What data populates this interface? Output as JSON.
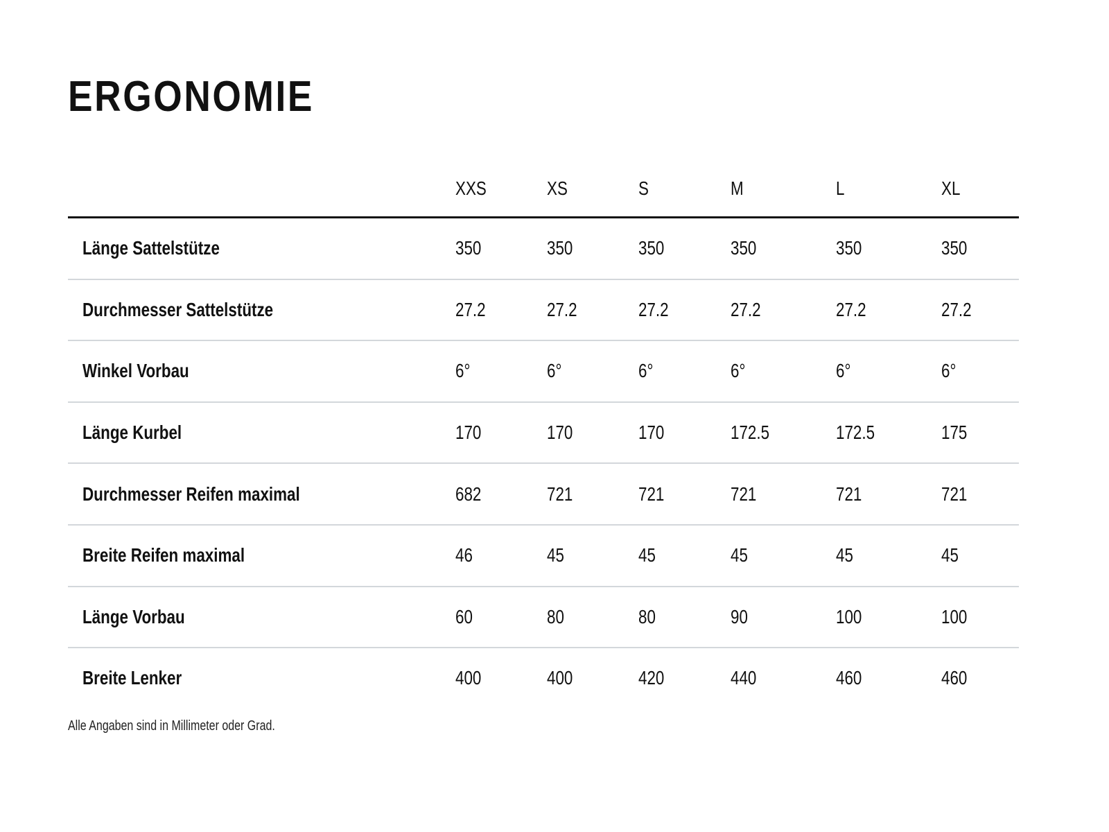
{
  "title": "ERGONOMIE",
  "table": {
    "columns": [
      "XXS",
      "XS",
      "S",
      "M",
      "L",
      "XL"
    ],
    "rows": [
      {
        "label": "Länge Sattelstütze",
        "values": [
          "350",
          "350",
          "350",
          "350",
          "350",
          "350"
        ]
      },
      {
        "label": "Durchmesser Sattelstütze",
        "values": [
          "27.2",
          "27.2",
          "27.2",
          "27.2",
          "27.2",
          "27.2"
        ]
      },
      {
        "label": "Winkel Vorbau",
        "values": [
          "6°",
          "6°",
          "6°",
          "6°",
          "6°",
          "6°"
        ]
      },
      {
        "label": "Länge Kurbel",
        "values": [
          "170",
          "170",
          "170",
          "172.5",
          "172.5",
          "175"
        ]
      },
      {
        "label": "Durchmesser Reifen maximal",
        "values": [
          "682",
          "721",
          "721",
          "721",
          "721",
          "721"
        ]
      },
      {
        "label": "Breite Reifen maximal",
        "values": [
          "46",
          "45",
          "45",
          "45",
          "45",
          "45"
        ]
      },
      {
        "label": "Länge Vorbau",
        "values": [
          "60",
          "80",
          "80",
          "90",
          "100",
          "100"
        ]
      },
      {
        "label": "Breite Lenker",
        "values": [
          "400",
          "400",
          "420",
          "440",
          "460",
          "460"
        ]
      }
    ]
  },
  "footnote": "Alle Angaben sind in Millimeter oder Grad."
}
